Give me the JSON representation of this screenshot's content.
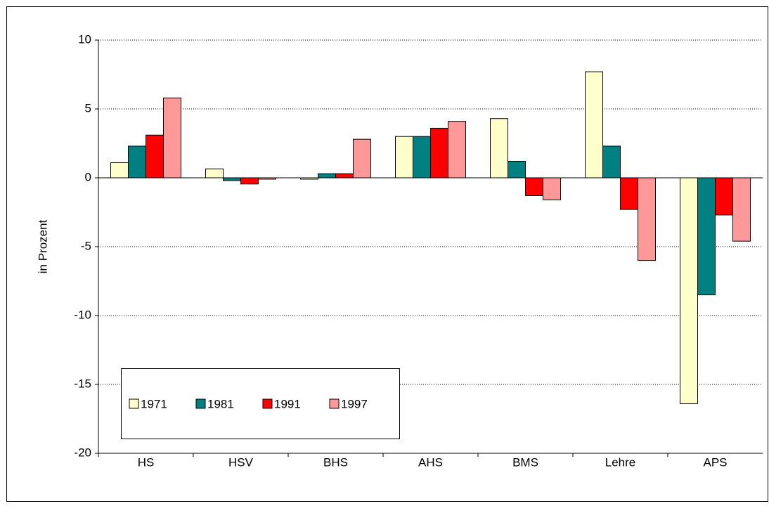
{
  "chart_data": {
    "type": "bar",
    "y_label": "in Prozent",
    "categories": [
      "HS",
      "HSV",
      "BHS",
      "AHS",
      "BMS",
      "Lehre",
      "APS"
    ],
    "series": [
      {
        "name": "1971",
        "color": "#ffffcc",
        "values": [
          1.1,
          0.65,
          -0.1,
          3.0,
          4.3,
          7.7,
          -16.4
        ]
      },
      {
        "name": "1981",
        "color": "#008080",
        "values": [
          2.3,
          -0.2,
          0.3,
          3.0,
          1.2,
          2.3,
          -8.5
        ]
      },
      {
        "name": "1991",
        "color": "#ff0000",
        "values": [
          3.1,
          -0.45,
          0.3,
          3.6,
          -1.3,
          -2.3,
          -2.7
        ]
      },
      {
        "name": "1997",
        "color": "#ff9999",
        "values": [
          5.8,
          -0.1,
          2.8,
          4.1,
          -1.6,
          -6.0,
          -4.6
        ]
      }
    ],
    "ylim": [
      -20,
      10
    ],
    "yticks": [
      -20,
      -15,
      -10,
      -5,
      0,
      5,
      10
    ],
    "grid": true,
    "legend": "lower left"
  }
}
